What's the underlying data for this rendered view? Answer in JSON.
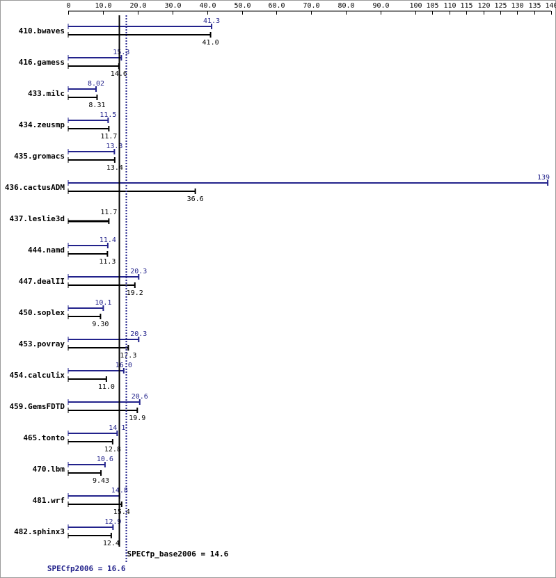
{
  "chart_data": {
    "type": "bar",
    "orientation": "horizontal",
    "ticks": [
      "0",
      "10.0",
      "20.0",
      "30.0",
      "40.0",
      "50.0",
      "60.0",
      "70.0",
      "80.0",
      "90.0",
      "100",
      "105",
      "110",
      "115",
      "120",
      "125",
      "130",
      "135",
      "140"
    ],
    "xlim": [
      0,
      140
    ],
    "grid": false,
    "colors": {
      "peak": "#22228b",
      "base": "#000000"
    },
    "categories": [
      "410.bwaves",
      "416.gamess",
      "433.milc",
      "434.zeusmp",
      "435.gromacs",
      "436.cactusADM",
      "437.leslie3d",
      "444.namd",
      "447.dealII",
      "450.soplex",
      "453.povray",
      "454.calculix",
      "459.GemsFDTD",
      "465.tonto",
      "470.lbm",
      "481.wrf",
      "482.sphinx3"
    ],
    "series": [
      {
        "key": "peak",
        "values": [
          41.3,
          15.3,
          8.02,
          11.5,
          13.3,
          139,
          11.7,
          11.4,
          20.3,
          10.1,
          20.3,
          16.0,
          20.6,
          14.1,
          10.6,
          14.8,
          12.9
        ],
        "labels": [
          "41.3",
          "15.3",
          "8.02",
          "11.5",
          "13.3",
          "139",
          "",
          "11.4",
          "20.3",
          "10.1",
          "20.3",
          "16.0",
          "20.6",
          "14.1",
          "10.6",
          "14.8",
          "12.9"
        ]
      },
      {
        "key": "base",
        "values": [
          41.0,
          14.6,
          8.31,
          11.7,
          13.4,
          36.6,
          11.7,
          11.3,
          19.2,
          9.3,
          17.3,
          11.0,
          19.9,
          12.8,
          9.43,
          15.4,
          12.4
        ],
        "labels": [
          "41.0",
          "14.6",
          "8.31",
          "11.7",
          "13.4",
          "36.6",
          "11.7",
          "11.3",
          "19.2",
          "9.30",
          "17.3",
          "11.0",
          "19.9",
          "12.8",
          "9.43",
          "15.4",
          "12.4"
        ]
      }
    ],
    "reference_lines": [
      {
        "key": "base",
        "label": "SPECfp_base2006 = 14.6",
        "value": 14.6,
        "style": "solid"
      },
      {
        "key": "peak",
        "label": "SPECfp2006 = 16.6",
        "value": 16.6,
        "style": "dotted"
      }
    ]
  }
}
